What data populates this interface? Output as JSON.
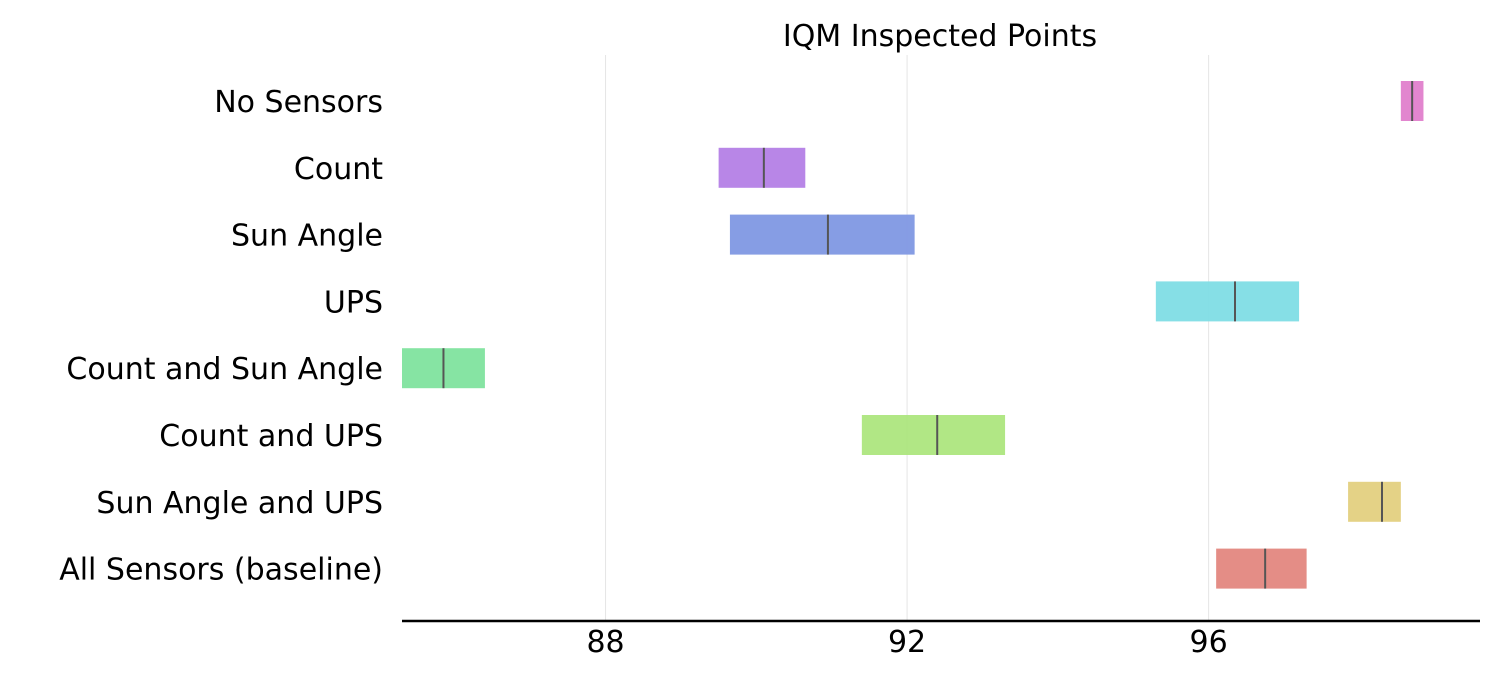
{
  "chart_data": {
    "type": "interval",
    "title": "IQM Inspected Points",
    "xlabel": "",
    "ylabel": "",
    "xlim": [
      85.3,
      99.6
    ],
    "xticks": [
      88,
      92,
      96
    ],
    "xtick_labels": [
      "88",
      "92",
      "96"
    ],
    "grid": "vertical",
    "categories": [
      "No Sensors",
      "Count",
      "Sun Angle",
      "UPS",
      "Count and Sun Angle",
      "Count and UPS",
      "Sun Angle and UPS",
      "All Sensors (baseline)"
    ],
    "intervals": [
      {
        "low": 98.55,
        "point": 98.7,
        "high": 98.85,
        "color": "#e07fcc"
      },
      {
        "low": 89.5,
        "point": 90.1,
        "high": 90.65,
        "color": "#b47fe6"
      },
      {
        "low": 89.65,
        "point": 90.95,
        "high": 92.1,
        "color": "#7f98e3"
      },
      {
        "low": 95.3,
        "point": 96.35,
        "high": 97.2,
        "color": "#80dde5"
      },
      {
        "low": 85.3,
        "point": 85.85,
        "high": 86.4,
        "color": "#80e39e"
      },
      {
        "low": 91.4,
        "point": 92.4,
        "high": 93.3,
        "color": "#ade67e"
      },
      {
        "low": 97.85,
        "point": 98.3,
        "high": 98.55,
        "color": "#e3d07f"
      },
      {
        "low": 96.1,
        "point": 96.75,
        "high": 97.3,
        "color": "#e3877f"
      }
    ]
  }
}
